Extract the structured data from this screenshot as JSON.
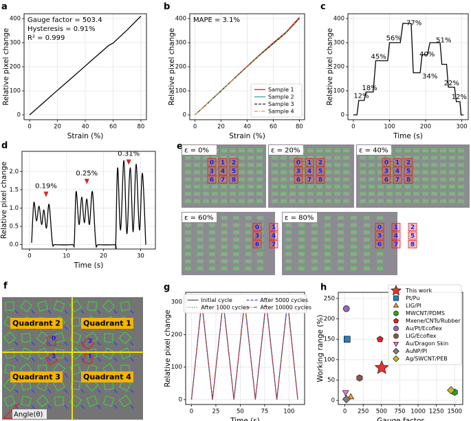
{
  "chart_data": [
    {
      "type": "line",
      "panel": "a",
      "xlabel": "Strain (%)",
      "ylabel": "Relative pixel change",
      "xlim": [
        -4,
        84
      ],
      "ylim": [
        -20,
        420
      ],
      "xticks": [
        0,
        20,
        40,
        60,
        80
      ],
      "yticks": [
        0,
        100,
        200,
        300,
        400
      ],
      "grid": true,
      "annotations": [
        "Gauge factor = 503.4",
        "Hysteresis = 0.91%",
        "R² = 0.999"
      ],
      "series": [
        {
          "color": "#000000",
          "dash": "solid",
          "x": [
            0,
            10,
            20,
            30,
            40,
            50,
            57,
            60,
            70,
            80
          ],
          "values": [
            0,
            51,
            102,
            152,
            203,
            254,
            289,
            298,
            352,
            410
          ]
        }
      ]
    },
    {
      "type": "line",
      "panel": "b",
      "xlabel": "Strain (%)",
      "ylabel": "Relative pixel change",
      "xlim": [
        -4,
        84
      ],
      "ylim": [
        -20,
        420
      ],
      "xticks": [
        0,
        20,
        40,
        60,
        80
      ],
      "yticks": [
        0,
        100,
        200,
        300,
        400
      ],
      "grid": true,
      "annotations": [
        "MAPE = 3.1%"
      ],
      "legend": "lower right",
      "series": [
        {
          "name": "Sample 1",
          "color": "#e41a1c",
          "dash": "solid",
          "x": [
            0,
            10,
            20,
            30,
            40,
            50,
            60,
            70,
            80
          ],
          "values": [
            0,
            50,
            100,
            152,
            202,
            252,
            300,
            345,
            405
          ]
        },
        {
          "name": "Sample 2",
          "color": "#3fa89a",
          "dash": "solid",
          "x": [
            0,
            10,
            20,
            30,
            40,
            50,
            60,
            70,
            80
          ],
          "values": [
            0,
            51,
            102,
            151,
            200,
            250,
            295,
            342,
            400
          ]
        },
        {
          "name": "Sample 3",
          "color": "#222222",
          "dash": "dashed",
          "x": [
            0,
            10,
            20,
            30,
            40,
            50,
            60,
            70,
            80
          ],
          "values": [
            0,
            49,
            99,
            150,
            201,
            251,
            298,
            343,
            402
          ]
        },
        {
          "name": "Sample 4",
          "color": "#f28e2b",
          "dash": "dashdot",
          "x": [
            0,
            10,
            20,
            30,
            40,
            50,
            60,
            70,
            80
          ],
          "values": [
            0,
            50,
            101,
            149,
            199,
            248,
            293,
            340,
            398
          ]
        }
      ]
    },
    {
      "type": "line",
      "panel": "c",
      "xlabel": "Time (s)",
      "ylabel": "Relative pixel change",
      "xlim": [
        -15,
        318
      ],
      "ylim": [
        -20,
        420
      ],
      "xticks": [
        0,
        100,
        200,
        300
      ],
      "yticks": [
        0,
        100,
        200,
        300,
        400
      ],
      "grid": true,
      "annotations": [
        {
          "text": "12%",
          "x": 22,
          "y": 78
        },
        {
          "text": "18%",
          "x": 45,
          "y": 112
        },
        {
          "text": "45%",
          "x": 70,
          "y": 242
        },
        {
          "text": "56%",
          "x": 112,
          "y": 318
        },
        {
          "text": "77%",
          "x": 168,
          "y": 382
        },
        {
          "text": "40%",
          "x": 204,
          "y": 252
        },
        {
          "text": "34%",
          "x": 212,
          "y": 160
        },
        {
          "text": "51%",
          "x": 250,
          "y": 310
        },
        {
          "text": "22%",
          "x": 272,
          "y": 132
        },
        {
          "text": "12%",
          "x": 293,
          "y": 75
        }
      ],
      "series": [
        {
          "color": "#000000",
          "dash": "solid",
          "x": [
            0,
            10,
            15,
            30,
            35,
            55,
            62,
            95,
            100,
            130,
            137,
            160,
            166,
            185,
            190,
            205,
            212,
            240,
            245,
            258,
            263,
            280,
            285,
            295,
            298,
            305
          ],
          "values": [
            0,
            0,
            60,
            60,
            95,
            95,
            225,
            225,
            300,
            300,
            380,
            380,
            175,
            175,
            250,
            250,
            300,
            300,
            210,
            210,
            115,
            115,
            55,
            55,
            0,
            0
          ]
        }
      ]
    },
    {
      "type": "line",
      "panel": "d",
      "xlabel": "Time (s)",
      "ylabel": "Relative pixel change",
      "smooth": true,
      "xlim": [
        -2,
        34
      ],
      "ylim": [
        -0.12,
        2.55
      ],
      "xticks": [
        0,
        10,
        20,
        30
      ],
      "yticks": [
        {
          "value": 0,
          "label": "0.0"
        },
        0.5,
        {
          "value": 1,
          "label": "1.0"
        },
        1.5,
        {
          "value": 2,
          "label": "2.0"
        }
      ],
      "grid": true,
      "annotations": [
        {
          "text": "0.19%",
          "x": 4.5,
          "y": 1.6,
          "arrow_color": "#d62728"
        },
        {
          "text": "0.25%",
          "x": 15.5,
          "y": 1.95,
          "arrow_color": "#d62728"
        },
        {
          "text": "0.31%",
          "x": 26.8,
          "y": 2.48,
          "arrow_color": "#d62728"
        }
      ],
      "series": [
        {
          "color": "#000000",
          "dash": "solid",
          "x": [
            0.6,
            1.2,
            1.9,
            2.6,
            3.3,
            3.9,
            4.6,
            5.3,
            6.2,
            7,
            11.5,
            12.1,
            12.6,
            13.4,
            14.1,
            14.8,
            15.5,
            16.2,
            17.0,
            17.9,
            18.7,
            23.0,
            23.3,
            23.8,
            24.6,
            25.5,
            26.3,
            27.2,
            28.0,
            28.8,
            29.7,
            30.5,
            31.4
          ],
          "values": [
            0.05,
            1.15,
            0.65,
            1.05,
            0.55,
            0.95,
            0.45,
            1.1,
            0.05,
            0.0,
            0.0,
            0.05,
            1.45,
            0.55,
            1.3,
            0.6,
            1.25,
            0.55,
            1.45,
            0.05,
            0.0,
            0.0,
            0.05,
            2.1,
            0.4,
            2.3,
            0.3,
            2.1,
            0.35,
            2.2,
            0.4,
            1.95,
            0.0
          ]
        }
      ]
    },
    {
      "type": "line",
      "panel": "g",
      "xlabel": "Time (s)",
      "ylabel": "Relative pixel change",
      "xlim": [
        -6,
        116
      ],
      "ylim": [
        -15,
        330
      ],
      "xticks": [
        0,
        25,
        50,
        75,
        100
      ],
      "yticks": [
        0,
        100,
        200,
        300
      ],
      "grid": true,
      "legend": "upper center",
      "series": [
        {
          "name": "Initial cycle",
          "color": "#555555",
          "dash": "solid",
          "x": [
            0,
            10.5,
            21.5,
            32.5,
            43.5,
            54.5,
            65.5,
            76.5,
            87.5,
            98.5,
            109
          ],
          "values": [
            0,
            302,
            0,
            302,
            0,
            302,
            0,
            302,
            0,
            302,
            0
          ]
        },
        {
          "name": "After 1000 cycles",
          "color": "#1a9e1a",
          "dash": "dotted",
          "x": [
            0,
            10.5,
            21.5,
            32.5,
            43.5,
            54.5,
            65.5,
            76.5,
            87.5,
            98.5,
            109
          ],
          "values": [
            0,
            300,
            0,
            300,
            0,
            300,
            0,
            300,
            0,
            300,
            0
          ]
        },
        {
          "name": "After 5000 cycles",
          "color": "#3b4cc0",
          "dash": "dashed",
          "x": [
            0,
            10.5,
            21.5,
            32.5,
            43.5,
            54.5,
            65.5,
            76.5,
            87.5,
            98.5,
            109
          ],
          "values": [
            0,
            298,
            0,
            298,
            0,
            298,
            0,
            298,
            0,
            298,
            0
          ]
        },
        {
          "name": "After 10000 cycles",
          "color": "#d62728",
          "dash": "dashdot",
          "x": [
            0,
            10.5,
            21.5,
            32.5,
            43.5,
            54.5,
            65.5,
            76.5,
            87.5,
            98.5,
            109
          ],
          "values": [
            0,
            305,
            0,
            305,
            0,
            305,
            0,
            305,
            0,
            305,
            0
          ]
        }
      ]
    },
    {
      "type": "scatter",
      "panel": "h",
      "xlabel": "Gauge factor",
      "ylabel": "Working range (%)",
      "xlim": [
        -90,
        1610
      ],
      "ylim": [
        -10,
        265
      ],
      "xticks": [
        0,
        250,
        500,
        750,
        1000,
        1250,
        1500
      ],
      "yticks": [
        0,
        50,
        100,
        150,
        200,
        250
      ],
      "grid": true,
      "legend": "upper right",
      "series": [
        {
          "name": "This work",
          "color": "#e8312a",
          "marker": "star",
          "x": [
            503.4
          ],
          "values": [
            80
          ]
        },
        {
          "name": "Pt/Pu",
          "color": "#2a7bbf",
          "marker": "square",
          "x": [
            30
          ],
          "values": [
            150
          ]
        },
        {
          "name": "LIG/PI",
          "color": "#f7941d",
          "marker": "triangle-up",
          "x": [
            80
          ],
          "values": [
            8
          ]
        },
        {
          "name": "MWCNT/PDMS",
          "color": "#2ca02c",
          "marker": "hexagon",
          "x": [
            1500
          ],
          "values": [
            20
          ]
        },
        {
          "name": "Mxene/CNTs/Rubber",
          "color": "#d62728",
          "marker": "pentagon",
          "x": [
            480
          ],
          "values": [
            150
          ]
        },
        {
          "name": "Au/Pt/Ecoflex",
          "color": "#9467bd",
          "marker": "circle",
          "x": [
            20
          ],
          "values": [
            225
          ]
        },
        {
          "name": "LIG/Ecoflex",
          "color": "#8c564b",
          "marker": "hexagon",
          "x": [
            200
          ],
          "values": [
            55
          ]
        },
        {
          "name": "Au/Dragon Skin",
          "color": "#e377c2",
          "marker": "triangle-down",
          "x": [
            10
          ],
          "values": [
            20
          ]
        },
        {
          "name": "AuNP/PI",
          "color": "#7f7f7f",
          "marker": "diamond",
          "x": [
            20
          ],
          "values": [
            3
          ]
        },
        {
          "name": "Ag/SWCNT/PEB",
          "color": "#bcbd22",
          "marker": "diamond",
          "x": [
            1450
          ],
          "values": [
            25
          ]
        }
      ]
    }
  ],
  "image_panels": [
    {
      "panel": "e",
      "captions": [
        "ε = 0%",
        "ε = 20%",
        "ε = 40%",
        "ε = 60%",
        "ε = 80%"
      ],
      "cell_labels": [
        "0",
        "1",
        "2",
        "3",
        "4",
        "5",
        "6",
        "7",
        "8"
      ]
    },
    {
      "panel": "f",
      "quadrants": [
        "Quadrant 1",
        "Quadrant 2",
        "Quadrant 3",
        "Quadrant 4"
      ],
      "marker_labels": [
        "0",
        "1",
        "2",
        "3"
      ],
      "angle_label": "Angle(θ)"
    }
  ]
}
